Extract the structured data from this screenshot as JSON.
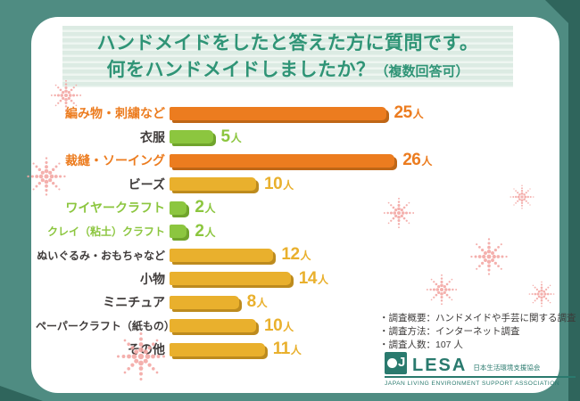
{
  "title": {
    "line1": "ハンドメイドをしたと答えた方に質問です。",
    "line2": "何をハンドメイドしましたか？",
    "line2_note": "（複数回答可）"
  },
  "chart_data": {
    "type": "bar",
    "orientation": "horizontal",
    "title": "ハンドメイドをしたと答えた方に質問です。何をハンドメイドしましたか？（複数回答可）",
    "unit": "人",
    "categories": [
      "編み物・刺繍など",
      "衣服",
      "裁縫・ソーイング",
      "ビーズ",
      "ワイヤークラフト",
      "クレイ（粘土）クラフト",
      "ぬいぐるみ・おもちゃなど",
      "小物",
      "ミニチュア",
      "ペーパークラフト（紙もの）",
      "その他"
    ],
    "values": [
      25,
      5,
      26,
      10,
      2,
      2,
      12,
      14,
      8,
      10,
      11
    ],
    "bar_colors": [
      "orange",
      "green",
      "orange",
      "gold",
      "green",
      "green",
      "gold",
      "gold",
      "gold",
      "gold",
      "gold"
    ],
    "label_colors": [
      "orange",
      "dark",
      "orange",
      "dark",
      "green",
      "green",
      "dark",
      "dark",
      "dark",
      "dark",
      "dark"
    ],
    "xlim": [
      0,
      28
    ],
    "grid": false,
    "legend": false
  },
  "colors": {
    "orange": "#ec7c1f",
    "orange_dark": "#bf6616",
    "green": "#8cc63f",
    "green_dark": "#70a42c",
    "gold": "#e9b02d",
    "gold_dark": "#bd8b1e",
    "label_dark": "#403c3b",
    "title_green": "#2f9476",
    "bg_teal": "#4f8c82",
    "bg_teal_dark": "#2f655c",
    "logo_teal": "#2a7a6e",
    "dot_pink": "#f3a8a5"
  },
  "footer": {
    "notes": [
      "・調査概要：ハンドメイドや手芸に関する調査",
      "・調査方法：インターネット調査",
      "・調査人数：107 人"
    ],
    "logo": {
      "icon_letter": "J",
      "name": "LESA",
      "org_ja": "日本生活環境支援協会",
      "org_en": "JAPAN LIVING ENVIRONMENT SUPPORT ASSOCIATION"
    }
  }
}
